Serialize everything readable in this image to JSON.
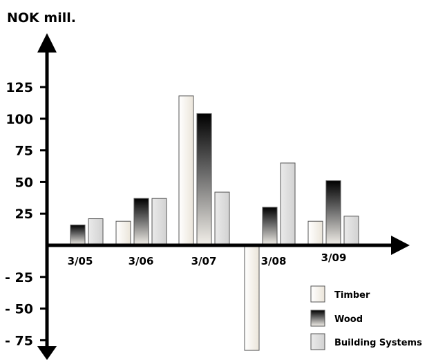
{
  "chart_data": {
    "type": "bar",
    "ylabel": "NOK mill.",
    "categories": [
      "3/05",
      "3/06",
      "3/07",
      "3/08",
      "3/09"
    ],
    "y_ticks": [
      {
        "value": 125,
        "label": "125"
      },
      {
        "value": 100,
        "label": "100"
      },
      {
        "value": 75,
        "label": "75"
      },
      {
        "value": 50,
        "label": "50"
      },
      {
        "value": 25,
        "label": "25"
      },
      {
        "value": -25,
        "label": "- 25"
      },
      {
        "value": -50,
        "label": "- 50"
      },
      {
        "value": -75,
        "label": "- 75"
      }
    ],
    "ylim": [
      -85,
      160
    ],
    "grid": false,
    "legend_position": "bottom-right",
    "series": [
      {
        "name": "Timber",
        "values": [
          1,
          19,
          118,
          -83,
          19
        ],
        "fill": "timber"
      },
      {
        "name": "Wood",
        "values": [
          16,
          37,
          104,
          30,
          51
        ],
        "fill": "wood"
      },
      {
        "name": "Building Systems",
        "values": [
          21,
          37,
          42,
          65,
          23
        ],
        "fill": "building"
      }
    ]
  },
  "colors": {
    "axis": "#000000",
    "bar_stroke": "#555555",
    "timber_light": "#ffffff",
    "timber_dark": "#ebe5da",
    "wood_top": "#000000",
    "wood_bottom": "#f3f0ea",
    "building_light": "#eaeaea",
    "building_dark": "#d2d2d2"
  }
}
